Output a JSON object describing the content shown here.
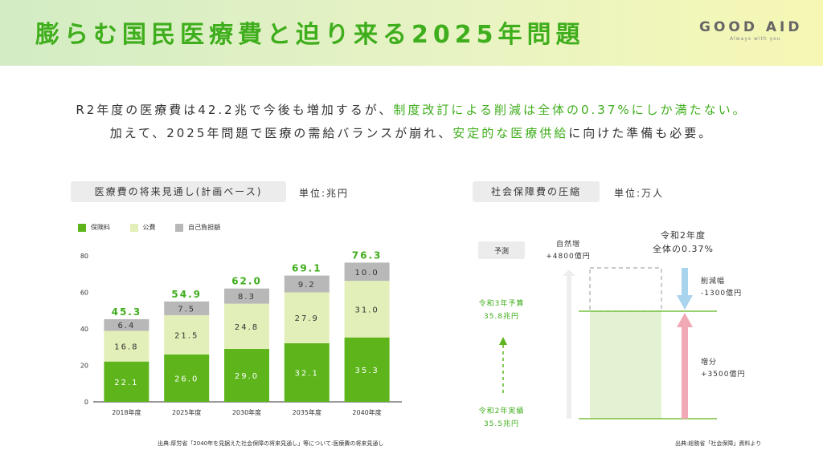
{
  "header": {
    "title": "膨らむ国民医療費と迫り来る2025年問題",
    "logo_text": "GOOD AID",
    "logo_tagline": "Always with you"
  },
  "lead": {
    "line1_a": "R2年度の医療費は42.2兆で今後も増加するが、",
    "line1_b": "制度改訂による削減は全体の0.37%にしか満たない。",
    "line2_a": "加えて、2025年問題で医療の需給バランスが崩れ、",
    "line2_b": "安定的な医療供給",
    "line2_c": "に向けた準備も必要。"
  },
  "left_panel": {
    "pill": "医療費の将来見通し(計画ベース)",
    "unit": "単位:兆円",
    "source": "出典:厚労省「2040年を見据えた社会保障の将来見通し」等について:医療費の将来見通し"
  },
  "right_panel": {
    "pill": "社会保障費の圧縮",
    "unit": "単位:万人",
    "source": "出典:総務省「社会保障」資料より",
    "forecast_label": "予測",
    "natural_increase": "自然増",
    "natural_increase_value": "+4800億円",
    "r2_title": "令和2年度",
    "r2_share": "全体の0.37%",
    "reduction_label": "削減幅",
    "reduction_value": "-1300億円",
    "increase_label": "増分",
    "increase_value": "+3500億円",
    "r3_budget_label": "令和3年予算",
    "r3_budget_value": "35.8兆円",
    "r2_actual_label": "令和2年実績",
    "r2_actual_value": "35.5兆円"
  },
  "chart_data": {
    "type": "bar",
    "stacked": true,
    "categories": [
      "2018年度",
      "2025年度",
      "2030年度",
      "2035年度",
      "2040年度"
    ],
    "series": [
      {
        "name": "保険料",
        "values": [
          22.1,
          26.0,
          29.0,
          32.1,
          35.3
        ],
        "color": "#5db51b"
      },
      {
        "name": "公費",
        "values": [
          16.8,
          21.5,
          24.8,
          27.9,
          31.0
        ],
        "color": "#e2efb8"
      },
      {
        "name": "自己負担額",
        "values": [
          6.4,
          7.5,
          8.3,
          9.2,
          10.0
        ],
        "color": "#b8b8b8"
      }
    ],
    "totals": [
      45.3,
      54.9,
      62.0,
      69.1,
      76.3
    ],
    "data_labels": {
      "保険料": [
        "22.1",
        "26.0",
        "29.0",
        "32.1",
        "35.3"
      ],
      "公費": [
        "16.8",
        "21.5",
        "24.8",
        "27.9",
        "31.0"
      ],
      "自己負担額": [
        "6.4",
        "7.5",
        "8.3",
        "9.2",
        "10.0"
      ],
      "totals": [
        "45.3",
        "54.9",
        "62.0",
        "69.1",
        "76.3"
      ]
    },
    "yticks": [
      "0",
      "20",
      "40",
      "60",
      "80"
    ],
    "ylim": [
      0,
      80
    ],
    "legend_position": "top-left",
    "grid": false
  },
  "colors": {
    "accent_green": "#3fae1c",
    "bar_green": "#5db51b",
    "light_green": "#e2efb8",
    "gray": "#b8b8b8",
    "reduction_blue": "#a9d4ee",
    "increase_pink": "#f2a9b6"
  }
}
